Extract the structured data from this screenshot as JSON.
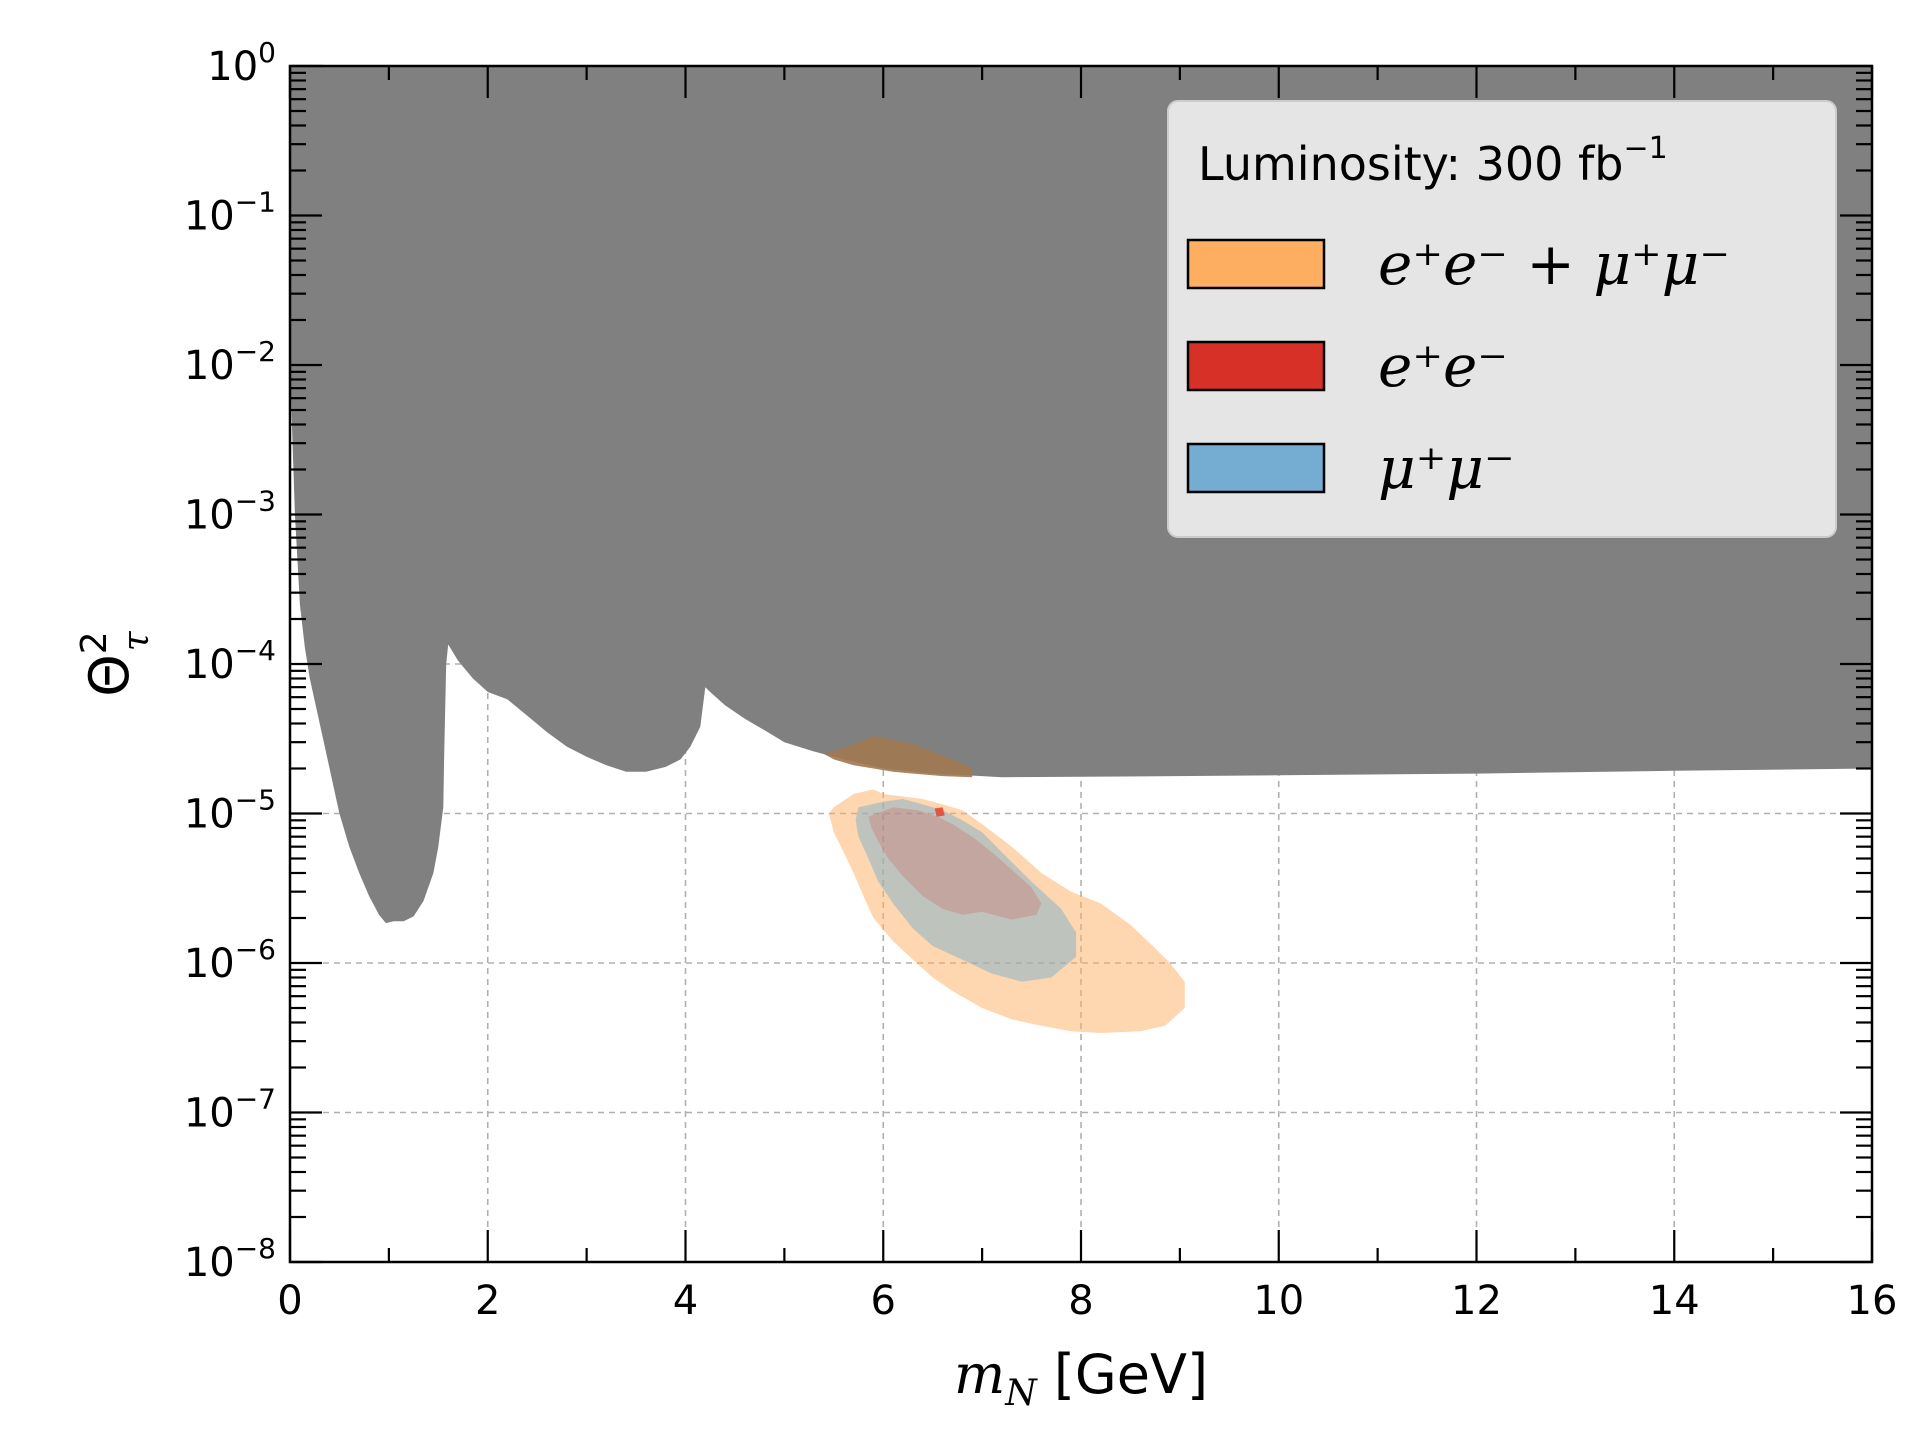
{
  "chart_data": {
    "type": "area",
    "xlabel": "m_N [GeV]",
    "ylabel": "Θ_τ^2",
    "xscale": "linear",
    "yscale": "log",
    "xlim": [
      0,
      16
    ],
    "ylim": [
      1e-08,
      1
    ],
    "grid": true,
    "xticks": [
      0,
      2,
      4,
      6,
      8,
      10,
      12,
      14,
      16
    ],
    "xtick_labels": [
      "0",
      "2",
      "4",
      "6",
      "8",
      "10",
      "12",
      "14",
      "16"
    ],
    "yticks": [
      {
        "value": 1,
        "base": "10",
        "exp": "0"
      },
      {
        "value": 0.1,
        "base": "10",
        "exp": "−1"
      },
      {
        "value": 0.01,
        "base": "10",
        "exp": "−2"
      },
      {
        "value": 0.001,
        "base": "10",
        "exp": "−3"
      },
      {
        "value": 0.0001,
        "base": "10",
        "exp": "−4"
      },
      {
        "value": 1e-05,
        "base": "10",
        "exp": "−5"
      },
      {
        "value": 1e-06,
        "base": "10",
        "exp": "−6"
      },
      {
        "value": 1e-07,
        "base": "10",
        "exp": "−7"
      },
      {
        "value": 1e-08,
        "base": "10",
        "exp": "−8"
      }
    ],
    "legend": {
      "position": "top-right",
      "title": {
        "text": "Luminosity: 300 fb",
        "sup": "−1"
      },
      "entries": [
        {
          "label": "e⁺e⁻ + μ⁺μ⁻",
          "color": "#fdae61"
        },
        {
          "label": "e⁺e⁻",
          "color": "#d73027"
        },
        {
          "label": "μ⁺μ⁻",
          "color": "#74add1"
        }
      ]
    },
    "series": [
      {
        "name": "excluded region",
        "kind": "excluded-upper",
        "color": "#808080",
        "x": [
          0.0,
          0.05,
          0.1,
          0.15,
          0.2,
          0.3,
          0.4,
          0.5,
          0.6,
          0.7,
          0.8,
          0.9,
          0.97,
          1.05,
          1.15,
          1.25,
          1.35,
          1.45,
          1.5,
          1.55,
          1.56,
          1.58,
          1.6,
          1.7,
          1.85,
          2.0,
          2.2,
          2.4,
          2.6,
          2.8,
          3.0,
          3.2,
          3.4,
          3.6,
          3.8,
          3.95,
          4.05,
          4.15,
          4.2,
          4.25,
          4.4,
          4.6,
          4.8,
          5.0,
          5.3,
          5.6,
          6.0,
          6.5,
          7.0,
          7.2,
          8.0,
          10.0,
          12.0,
          14.0,
          16.0
        ],
        "y": [
          0.01,
          0.001,
          0.00025,
          0.00013,
          8e-05,
          4e-05,
          2e-05,
          1e-05,
          6e-06,
          4e-06,
          2.8e-06,
          2.1e-06,
          1.85e-06,
          1.9e-06,
          1.9e-06,
          2.05e-06,
          2.6e-06,
          4e-06,
          6e-06,
          1.1e-05,
          2.5e-05,
          0.0001,
          0.000135,
          0.000105,
          8e-05,
          6.5e-05,
          5.8e-05,
          4.5e-05,
          3.5e-05,
          2.8e-05,
          2.4e-05,
          2.1e-05,
          1.9e-05,
          1.9e-05,
          2.05e-05,
          2.3e-05,
          2.8e-05,
          3.8e-05,
          7e-05,
          6.5e-05,
          5.3e-05,
          4.3e-05,
          3.6e-05,
          3e-05,
          2.6e-05,
          2.3e-05,
          2e-05,
          1.85e-05,
          1.78e-05,
          1.75e-05,
          1.76e-05,
          1.8e-05,
          1.85e-05,
          1.93e-05,
          2e-05
        ]
      },
      {
        "name": "e⁺e⁻ + μ⁺μ⁻",
        "kind": "contour",
        "color": "#fdae61",
        "opacity": 0.5,
        "x": [
          5.5,
          5.7,
          5.9,
          6.0,
          6.2,
          6.4,
          6.6,
          6.8,
          7.0,
          7.3,
          7.6,
          7.9,
          8.2,
          8.5,
          8.7,
          8.9,
          9.05,
          9.05,
          8.85,
          8.6,
          8.2,
          7.9,
          7.6,
          7.3,
          7.0,
          6.7,
          6.5,
          6.3,
          6.1,
          5.9,
          5.8,
          5.7,
          5.6,
          5.5,
          5.45
        ],
        "y": [
          1.1e-05,
          1.35e-05,
          1.45e-05,
          1.35e-05,
          1.3e-05,
          1.25e-05,
          1.15e-05,
          1.05e-05,
          8.5e-06,
          6e-06,
          4e-06,
          3e-06,
          2.5e-06,
          1.8e-06,
          1.35e-06,
          1e-06,
          7.5e-07,
          5e-07,
          3.8e-07,
          3.5e-07,
          3.4e-07,
          3.5e-07,
          3.8e-07,
          4.2e-07,
          5e-07,
          6.5e-07,
          8e-07,
          1.05e-06,
          1.4e-06,
          2e-06,
          2.8e-06,
          4e-06,
          5.5e-06,
          7.5e-06,
          1e-05
        ]
      },
      {
        "name": "e⁺e⁻ + μ⁺μ⁻ (shaded band above bound)",
        "kind": "contour",
        "color": "#a07850",
        "opacity": 0.9,
        "x": [
          5.4,
          5.7,
          5.9,
          6.1,
          6.3,
          6.5,
          6.7,
          6.9,
          6.9,
          6.6,
          6.3,
          6.1,
          5.9,
          5.7,
          5.5
        ],
        "y": [
          2.5e-05,
          2.9e-05,
          3.3e-05,
          3.1e-05,
          2.9e-05,
          2.6e-05,
          2.3e-05,
          2e-05,
          1.75e-05,
          1.78e-05,
          1.85e-05,
          1.9e-05,
          2e-05,
          2.1e-05,
          2.3e-05
        ]
      },
      {
        "name": "μ⁺μ⁻",
        "kind": "contour",
        "color": "#74add1",
        "opacity": 0.45,
        "x": [
          5.75,
          6.0,
          6.2,
          6.4,
          6.6,
          6.8,
          7.0,
          7.2,
          7.5,
          7.8,
          7.95,
          7.95,
          7.7,
          7.4,
          7.1,
          6.8,
          6.5,
          6.3,
          6.1,
          5.95,
          5.85,
          5.75,
          5.72
        ],
        "y": [
          1.1e-05,
          1.2e-05,
          1.25e-05,
          1.15e-05,
          1.05e-05,
          9e-06,
          7.5e-06,
          5.5e-06,
          3.5e-06,
          2.3e-06,
          1.6e-06,
          1.1e-06,
          8e-07,
          7.5e-07,
          8.5e-07,
          1.05e-06,
          1.3e-06,
          1.7e-06,
          2.5e-06,
          3.5e-06,
          5e-06,
          7e-06,
          9e-06
        ]
      },
      {
        "name": "e⁺e⁻",
        "kind": "contour",
        "color": "#d73027",
        "opacity": 0.2,
        "x": [
          5.85,
          6.1,
          6.35,
          6.55,
          6.7,
          6.9,
          7.1,
          7.3,
          7.5,
          7.6,
          7.55,
          7.3,
          7.0,
          6.8,
          6.6,
          6.4,
          6.2,
          6.05,
          5.95,
          5.88
        ],
        "y": [
          9.5e-06,
          1.1e-05,
          1.05e-05,
          9.5e-06,
          8.5e-06,
          7e-06,
          5.5e-06,
          4.2e-06,
          3.2e-06,
          2.5e-06,
          2.1e-06,
          1.95e-06,
          2.2e-06,
          2.1e-06,
          2.3e-06,
          2.8e-06,
          3.8e-06,
          5e-06,
          6.5e-06,
          8e-06
        ]
      },
      {
        "name": "e⁺e⁻ (dot)",
        "kind": "contour",
        "color": "#e34a33",
        "opacity": 0.9,
        "x": [
          6.52,
          6.6,
          6.62,
          6.54
        ],
        "y": [
          1.08e-05,
          1.1e-05,
          9.7e-06,
          9.5e-06
        ]
      }
    ]
  }
}
